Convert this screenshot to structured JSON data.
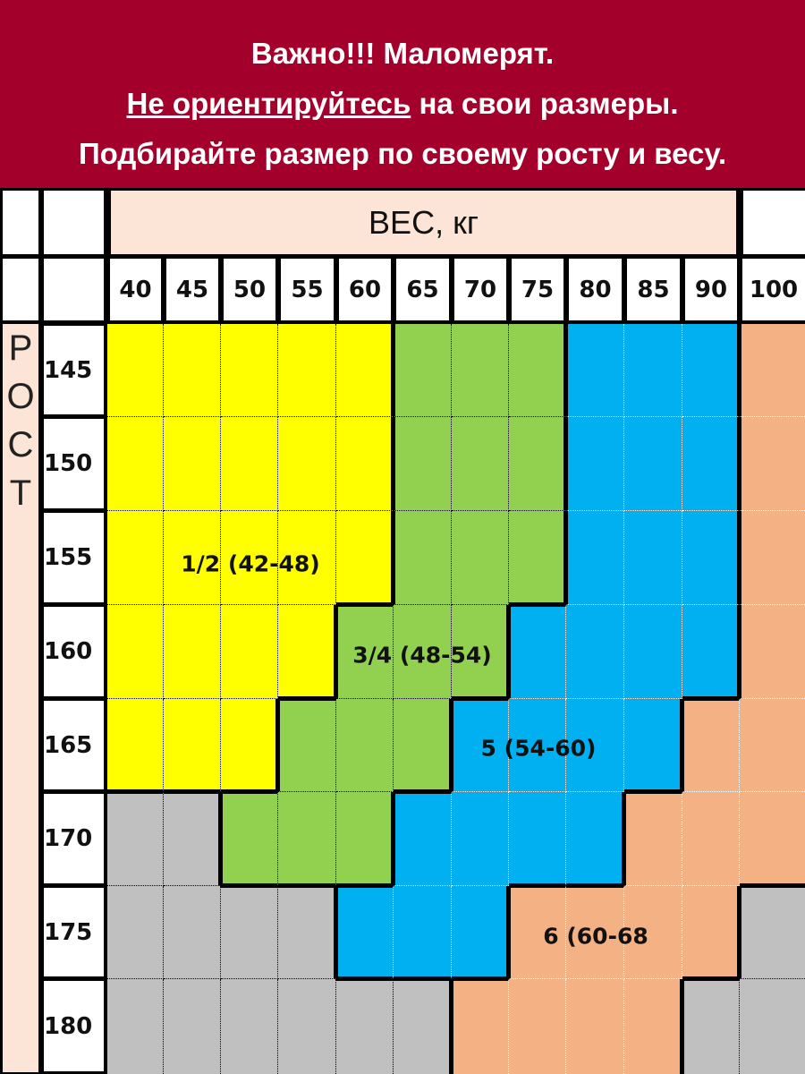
{
  "banner": {
    "line1": "Важно!!! Маломерят.",
    "line2_underlined": "Не ориентируйтесь",
    "line2_rest": " на свои размеры.",
    "line3": "Подбирайте размер по своему росту и весу."
  },
  "colors": {
    "banner": "#a3002b",
    "header": "#fce4d6",
    "1/2": "#ffff00",
    "3/4": "#92d050",
    "5": "#00b0f0",
    "6": "#f4b183",
    "none": "#c0c0c0"
  },
  "chart_data": {
    "type": "heatmap",
    "xlabel": "ВЕС, кг",
    "ylabel": "РОСТ",
    "ylabel_letters": [
      "Р",
      "О",
      "С",
      "Т"
    ],
    "x": [
      "40",
      "45",
      "50",
      "55",
      "60",
      "65",
      "70",
      "75",
      "80",
      "85",
      "90",
      "100"
    ],
    "y": [
      "145",
      "150",
      "155",
      "160",
      "165",
      "170",
      "175",
      "180"
    ],
    "sizes": {
      "Y": "1/2 (42-48)",
      "G": "3/4 (48-54)",
      "B": "5 (54-60)",
      "O": "6 (60-68",
      "N": ""
    },
    "cells": [
      [
        "Y",
        "Y",
        "Y",
        "Y",
        "Y",
        "G",
        "G",
        "G",
        "B",
        "B",
        "B",
        "O"
      ],
      [
        "Y",
        "Y",
        "Y",
        "Y",
        "Y",
        "G",
        "G",
        "G",
        "B",
        "B",
        "B",
        "O"
      ],
      [
        "Y",
        "Y",
        "Y",
        "Y",
        "Y",
        "G",
        "G",
        "G",
        "B",
        "B",
        "B",
        "O"
      ],
      [
        "Y",
        "Y",
        "Y",
        "Y",
        "G",
        "G",
        "G",
        "B",
        "B",
        "B",
        "B",
        "O"
      ],
      [
        "Y",
        "Y",
        "Y",
        "G",
        "G",
        "G",
        "B",
        "B",
        "B",
        "B",
        "O",
        "O"
      ],
      [
        "N",
        "N",
        "G",
        "G",
        "G",
        "B",
        "B",
        "B",
        "B",
        "O",
        "O",
        "O"
      ],
      [
        "N",
        "N",
        "N",
        "N",
        "B",
        "B",
        "B",
        "O",
        "O",
        "O",
        "O",
        "N"
      ],
      [
        "N",
        "N",
        "N",
        "N",
        "N",
        "N",
        "O",
        "O",
        "O",
        "O",
        "N",
        "N"
      ]
    ],
    "labels": [
      {
        "text": "1/2 (42-48)",
        "row": "155",
        "col": "50–55"
      },
      {
        "text": "3/4 (48-54)",
        "row": "160",
        "col": "60–70"
      },
      {
        "text": "5 (54-60)",
        "row": "165",
        "col": "70–80"
      },
      {
        "text": "6 (60-68",
        "row": "175",
        "col": "75–85"
      }
    ]
  }
}
